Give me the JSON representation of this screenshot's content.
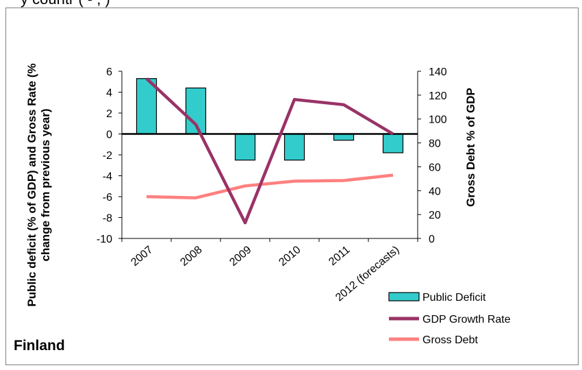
{
  "top_caption": "y countr  (        -   ,        )",
  "country_label": "Finland",
  "colors": {
    "deficit_fill": "#33cccc",
    "deficit_stroke": "#000000",
    "gdp_line": "#993366",
    "debt_line": "#ff8080",
    "zero_line": "#000000",
    "axis": "#000000"
  },
  "chart_data": {
    "type": "bar",
    "title": "",
    "categories": [
      "2007",
      "2008",
      "2009",
      "2010",
      "2011",
      "2012 (forecasts)"
    ],
    "ylabel_left": "Public deficit (% of GDP) and Gross Rate (% change from previous year)",
    "ylabel_left_lines": [
      "Public deficit (% of GDP) and Gross Rate (%",
      "change from previous year)"
    ],
    "ylabel_right": "Gross Debt % of GDP",
    "ylim_left": [
      -10,
      6
    ],
    "yticks_left": [
      6,
      4,
      2,
      0,
      -2,
      -4,
      -6,
      -8,
      -10
    ],
    "ylim_right": [
      0,
      140
    ],
    "yticks_right": [
      140,
      120,
      100,
      80,
      60,
      40,
      20,
      0
    ],
    "grid": false,
    "legend_position": "bottom-right",
    "series": [
      {
        "name": "Public Deficit",
        "type": "bar",
        "axis": "left",
        "values": [
          5.3,
          4.4,
          -2.5,
          -2.5,
          -0.6,
          -1.8
        ]
      },
      {
        "name": "GDP Growth Rate",
        "type": "line",
        "axis": "left",
        "values": [
          5.3,
          0.9,
          -8.5,
          3.3,
          2.8,
          0.0
        ]
      },
      {
        "name": "Gross Debt",
        "type": "line",
        "axis": "right",
        "values": [
          35,
          34,
          44,
          48,
          48.5,
          53
        ]
      }
    ]
  }
}
